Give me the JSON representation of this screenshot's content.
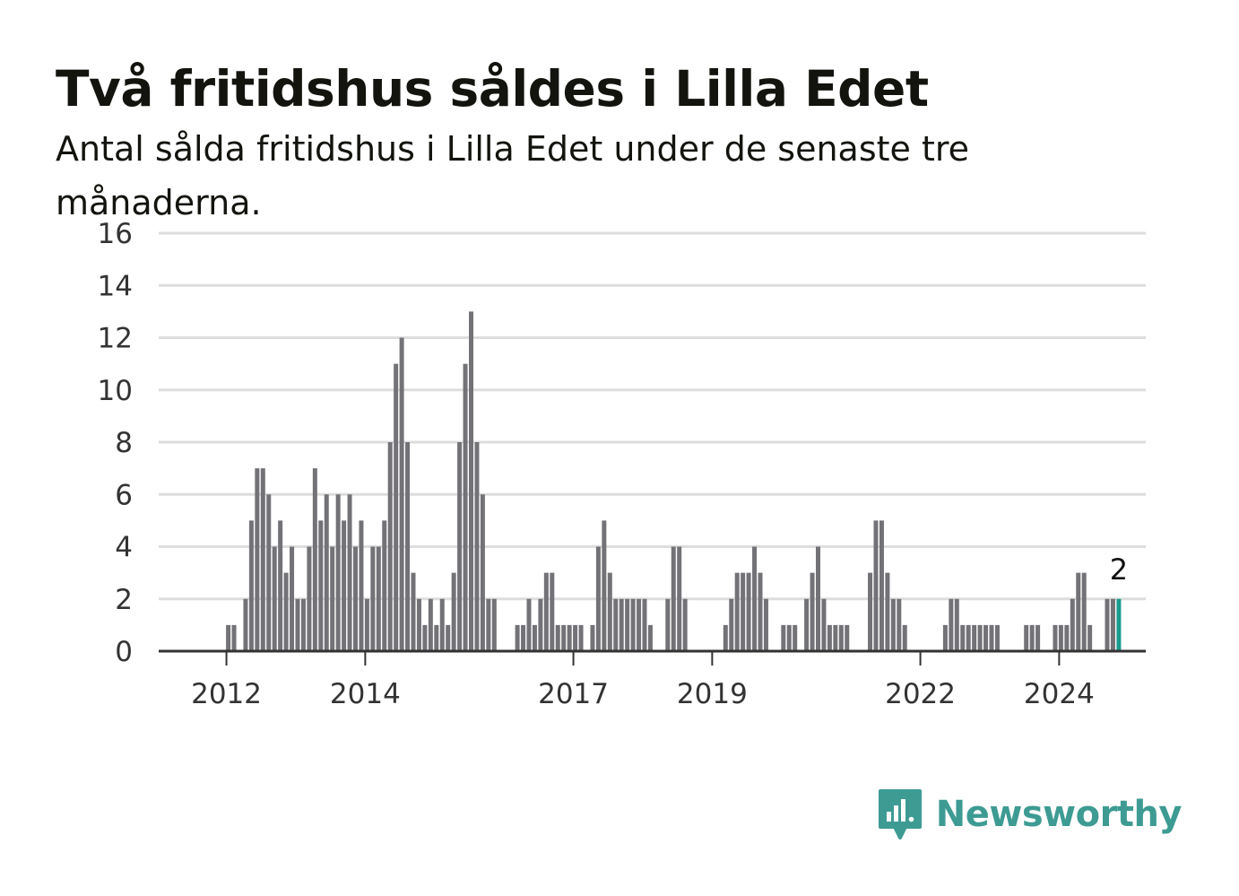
{
  "title": "Två fritidshus såldes i Lilla Edet",
  "subtitle": "Antal sålda fritidshus i Lilla Edet under de senaste tre månaderna.",
  "brand": {
    "name": "Newsworthy",
    "icon": "newsworthy-logo-icon"
  },
  "colors": {
    "bar": "#737277",
    "highlight": "#1a9a8c",
    "grid": "#dddddd",
    "axis": "#333333",
    "brand": "#3d9b93"
  },
  "chart_data": {
    "type": "bar",
    "title": "Två fritidshus såldes i Lilla Edet",
    "subtitle": "Antal sålda fritidshus i Lilla Edet under de senaste tre månaderna.",
    "xlabel": "",
    "ylabel": "",
    "ylim": [
      0,
      16
    ],
    "yticks": [
      0,
      2,
      4,
      6,
      8,
      10,
      12,
      14,
      16
    ],
    "xtick_labels": [
      "2012",
      "2014",
      "2017",
      "2019",
      "2022",
      "2024"
    ],
    "grid": true,
    "x_start": "2011-09",
    "x_end": "2024-11",
    "highlight_last": true,
    "last_value_label": "2",
    "values": [
      0,
      0,
      0,
      0,
      0,
      0,
      0,
      0,
      1,
      1,
      0,
      2,
      5,
      7,
      7,
      6,
      4,
      5,
      3,
      4,
      2,
      2,
      4,
      7,
      5,
      6,
      4,
      6,
      5,
      6,
      4,
      5,
      2,
      4,
      4,
      5,
      8,
      11,
      12,
      8,
      3,
      2,
      1,
      2,
      1,
      2,
      1,
      3,
      8,
      11,
      13,
      8,
      6,
      2,
      2,
      0,
      0,
      0,
      1,
      1,
      2,
      1,
      2,
      3,
      3,
      1,
      1,
      1,
      1,
      1,
      0,
      1,
      4,
      5,
      3,
      2,
      2,
      2,
      2,
      2,
      2,
      1,
      0,
      0,
      2,
      4,
      4,
      2,
      0,
      0,
      0,
      0,
      0,
      0,
      1,
      2,
      3,
      3,
      3,
      4,
      3,
      2,
      0,
      0,
      1,
      1,
      1,
      0,
      2,
      3,
      4,
      2,
      1,
      1,
      1,
      1,
      0,
      0,
      0,
      3,
      5,
      5,
      3,
      2,
      2,
      1,
      0,
      0,
      0,
      0,
      0,
      0,
      1,
      2,
      2,
      1,
      1,
      1,
      1,
      1,
      1,
      1,
      0,
      0,
      0,
      0,
      1,
      1,
      1,
      0,
      0,
      1,
      1,
      1,
      2,
      3,
      3,
      1,
      0,
      0,
      2,
      2,
      2
    ]
  }
}
